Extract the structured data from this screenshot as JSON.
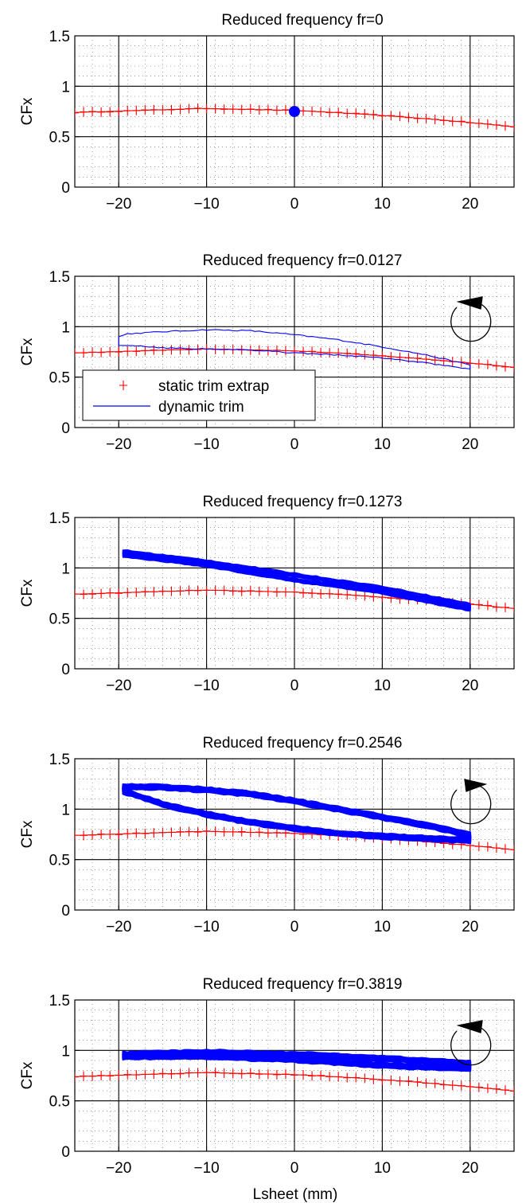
{
  "figure": {
    "xlabel": "Lsheet (mm)"
  },
  "legend": {
    "static_label": "static trim extrap",
    "dynamic_label": "dynamic trim",
    "placement": "lower-left of panel 2"
  },
  "colors": {
    "static": "#ff0000",
    "dynamic": "#0000ff",
    "grid": "#000000",
    "arrow": "#000000"
  },
  "chart_data": [
    {
      "type": "line",
      "title": "Reduced frequency fr=0",
      "ylabel": "CFx",
      "xlim": [
        -25,
        25
      ],
      "ylim": [
        0,
        1.5
      ],
      "xticks": [
        -20,
        -10,
        0,
        10,
        20
      ],
      "yticks": [
        0,
        0.5,
        1,
        1.5
      ],
      "xtick_labels": [
        "−20",
        "−10",
        "0",
        "10",
        "20"
      ],
      "ytick_labels": [
        "0",
        "0.5",
        "1",
        "1.5"
      ],
      "grid": true,
      "rotation": "none",
      "series": [
        {
          "kind": "static",
          "x_range": [
            -25,
            25
          ]
        },
        {
          "kind": "dynamic",
          "form": "point",
          "x": 0,
          "y": 0.75
        }
      ]
    },
    {
      "type": "line",
      "title": "Reduced frequency fr=0.0127",
      "ylabel": "CFx",
      "xlim": [
        -25,
        25
      ],
      "ylim": [
        0,
        1.5
      ],
      "xticks": [
        -20,
        -10,
        0,
        10,
        20
      ],
      "yticks": [
        0,
        0.5,
        1,
        1.5
      ],
      "xtick_labels": [
        "−20",
        "−10",
        "0",
        "10",
        "20"
      ],
      "ytick_labels": [
        "0",
        "0.5",
        "1",
        "1.5"
      ],
      "grid": true,
      "rotation": "counter-clockwise",
      "series": [
        {
          "kind": "static",
          "x_range": [
            -25,
            25
          ]
        },
        {
          "kind": "dynamic",
          "form": "loop",
          "thickness": "thin",
          "start_x": -20,
          "end_x": 20,
          "upper": [
            [
              -20,
              0.9
            ],
            [
              -19,
              0.93
            ],
            [
              -15,
              0.95
            ],
            [
              -10,
              0.97
            ],
            [
              -5,
              0.96
            ],
            [
              0,
              0.92
            ],
            [
              5,
              0.87
            ],
            [
              10,
              0.8
            ],
            [
              15,
              0.72
            ],
            [
              20,
              0.62
            ]
          ],
          "lower": [
            [
              -20,
              0.82
            ],
            [
              -15,
              0.79
            ],
            [
              -10,
              0.78
            ],
            [
              -5,
              0.77
            ],
            [
              0,
              0.74
            ],
            [
              5,
              0.72
            ],
            [
              10,
              0.69
            ],
            [
              15,
              0.64
            ],
            [
              20,
              0.58
            ]
          ]
        }
      ]
    },
    {
      "type": "line",
      "title": "Reduced frequency fr=0.1273",
      "ylabel": "CFx",
      "xlim": [
        -25,
        25
      ],
      "ylim": [
        0,
        1.5
      ],
      "xticks": [
        -20,
        -10,
        0,
        10,
        20
      ],
      "yticks": [
        0,
        0.5,
        1,
        1.5
      ],
      "xtick_labels": [
        "−20",
        "−10",
        "0",
        "10",
        "20"
      ],
      "ytick_labels": [
        "0",
        "0.5",
        "1",
        "1.5"
      ],
      "grid": true,
      "rotation": "none",
      "series": [
        {
          "kind": "static",
          "x_range": [
            -25,
            25
          ]
        },
        {
          "kind": "dynamic",
          "form": "loop",
          "thickness": "medium",
          "start_x": -19.5,
          "end_x": 20,
          "upper": [
            [
              -19.5,
              1.16
            ],
            [
              -10,
              1.06
            ],
            [
              0,
              0.93
            ],
            [
              10,
              0.8
            ],
            [
              20,
              0.63
            ]
          ],
          "lower": [
            [
              -19.5,
              1.13
            ],
            [
              -10,
              1.03
            ],
            [
              0,
              0.88
            ],
            [
              10,
              0.76
            ],
            [
              20,
              0.59
            ]
          ]
        }
      ]
    },
    {
      "type": "line",
      "title": "Reduced frequency fr=0.2546",
      "ylabel": "CFx",
      "xlim": [
        -25,
        25
      ],
      "ylim": [
        0,
        1.5
      ],
      "xticks": [
        -20,
        -10,
        0,
        10,
        20
      ],
      "yticks": [
        0,
        0.5,
        1,
        1.5
      ],
      "xtick_labels": [
        "−20",
        "−10",
        "0",
        "10",
        "20"
      ],
      "ytick_labels": [
        "0",
        "0.5",
        "1",
        "1.5"
      ],
      "grid": true,
      "rotation": "clockwise",
      "series": [
        {
          "kind": "static",
          "x_range": [
            -25,
            25
          ]
        },
        {
          "kind": "dynamic",
          "form": "loop",
          "thickness": "thick",
          "start_x": -19.5,
          "end_x": 20,
          "upper": [
            [
              -19.5,
              1.22
            ],
            [
              -15,
              1.22
            ],
            [
              -10,
              1.19
            ],
            [
              -5,
              1.15
            ],
            [
              0,
              1.08
            ],
            [
              5,
              1.0
            ],
            [
              10,
              0.92
            ],
            [
              15,
              0.84
            ],
            [
              20,
              0.74
            ]
          ],
          "lower": [
            [
              -19.5,
              1.18
            ],
            [
              -15,
              1.05
            ],
            [
              -10,
              0.95
            ],
            [
              -5,
              0.87
            ],
            [
              0,
              0.81
            ],
            [
              5,
              0.76
            ],
            [
              10,
              0.73
            ],
            [
              15,
              0.71
            ],
            [
              20,
              0.69
            ]
          ]
        }
      ]
    },
    {
      "type": "line",
      "title": "Reduced frequency fr=0.3819",
      "ylabel": "CFx",
      "xlim": [
        -25,
        25
      ],
      "ylim": [
        0,
        1.5
      ],
      "xticks": [
        -20,
        -10,
        0,
        10,
        20
      ],
      "yticks": [
        0,
        0.5,
        1,
        1.5
      ],
      "xtick_labels": [
        "−20",
        "−10",
        "0",
        "10",
        "20"
      ],
      "ytick_labels": [
        "0",
        "0.5",
        "1",
        "1.5"
      ],
      "grid": true,
      "rotation": "counter-clockwise",
      "series": [
        {
          "kind": "static",
          "x_range": [
            -25,
            25
          ]
        },
        {
          "kind": "dynamic",
          "form": "loop",
          "thickness": "thick",
          "start_x": -19.5,
          "end_x": 20,
          "upper": [
            [
              -19.5,
              0.96
            ],
            [
              -10,
              0.98
            ],
            [
              0,
              0.96
            ],
            [
              10,
              0.92
            ],
            [
              20,
              0.87
            ]
          ],
          "lower": [
            [
              -19.5,
              0.94
            ],
            [
              -10,
              0.94
            ],
            [
              0,
              0.91
            ],
            [
              10,
              0.85
            ],
            [
              20,
              0.82
            ]
          ]
        }
      ]
    }
  ]
}
